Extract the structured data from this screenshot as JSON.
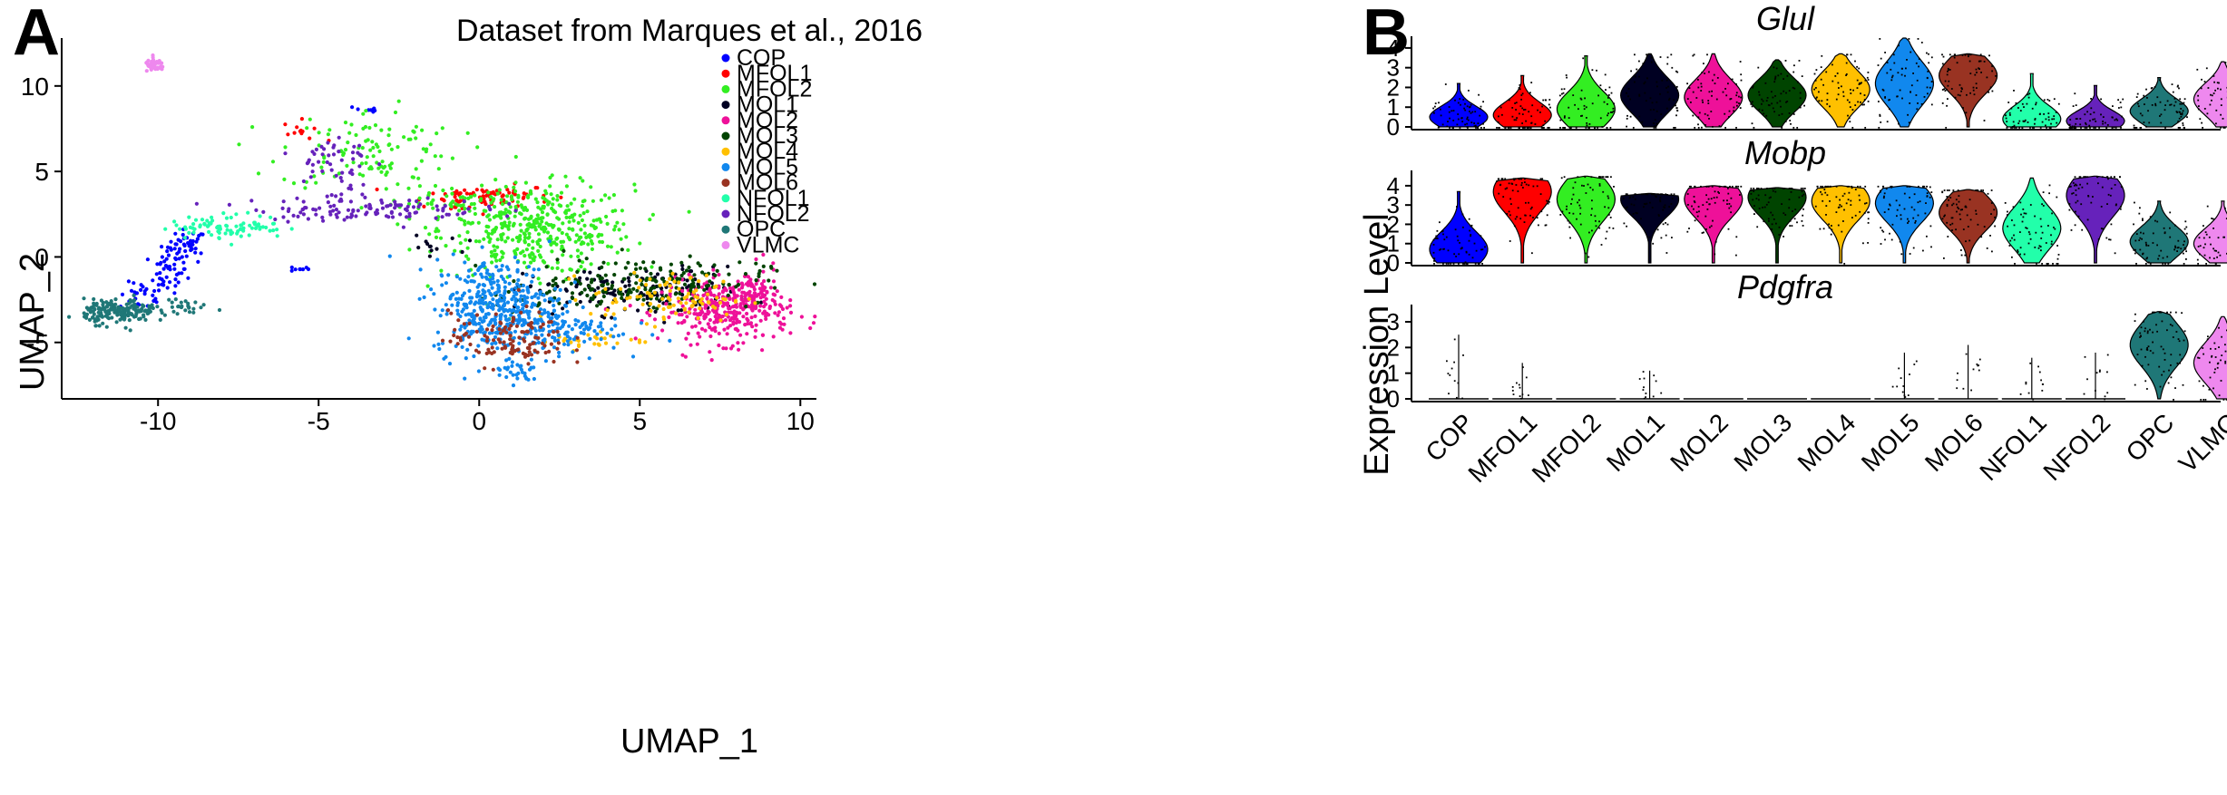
{
  "panel_a_letter": "A",
  "panel_b_letter": "B",
  "chart_data": [
    {
      "type": "scatter",
      "title": "Dataset from Marques et al., 2016",
      "xlabel": "UMAP_1",
      "ylabel": "UMAP_2",
      "xlim": [
        -13,
        10.5
      ],
      "ylim": [
        -8.3,
        12.8
      ],
      "xticks": [
        -10,
        -5,
        0,
        5,
        10
      ],
      "yticks": [
        -5,
        0,
        5,
        10
      ],
      "grid": false,
      "legend_position": "top-right",
      "series": [
        {
          "name": "COP",
          "color": "#0000FF",
          "clusters": [
            {
              "x": -9.1,
              "y": 0.6,
              "sx": 0.3,
              "sy": 0.5,
              "n": 45
            },
            {
              "x": -9.7,
              "y": -0.9,
              "sx": 0.3,
              "sy": 0.6,
              "n": 40
            },
            {
              "x": -10.5,
              "y": -2.3,
              "sx": 0.35,
              "sy": 0.4,
              "n": 25
            },
            {
              "x": -5.6,
              "y": -0.7,
              "sx": 0.15,
              "sy": 0.08,
              "n": 8
            },
            {
              "x": -3.5,
              "y": 8.6,
              "sx": 0.2,
              "sy": 0.15,
              "n": 8
            }
          ]
        },
        {
          "name": "MFOL1",
          "color": "#FF0000",
          "clusters": [
            {
              "x": 0.3,
              "y": 3.6,
              "sx": 1.0,
              "sy": 0.3,
              "n": 70
            },
            {
              "x": -5.5,
              "y": 7.4,
              "sx": 0.3,
              "sy": 0.3,
              "n": 12
            },
            {
              "x": -0.7,
              "y": 3.3,
              "sx": 0.5,
              "sy": 0.5,
              "n": 20
            }
          ]
        },
        {
          "name": "MFOL2",
          "color": "#33EE22",
          "clusters": [
            {
              "x": 1.8,
              "y": 1.6,
              "sx": 1.5,
              "sy": 1.3,
              "n": 420
            },
            {
              "x": -3.4,
              "y": 6.3,
              "sx": 1.4,
              "sy": 1.2,
              "n": 110
            },
            {
              "x": -1.2,
              "y": 3.1,
              "sx": 0.8,
              "sy": 0.6,
              "n": 50
            }
          ]
        },
        {
          "name": "MOL1",
          "color": "#000022",
          "clusters": [
            {
              "x": 4.9,
              "y": -2.0,
              "sx": 1.7,
              "sy": 0.7,
              "n": 160
            },
            {
              "x": -1.6,
              "y": 0.6,
              "sx": 0.5,
              "sy": 0.3,
              "n": 12
            }
          ]
        },
        {
          "name": "MOL2",
          "color": "#EE1199",
          "clusters": [
            {
              "x": 7.7,
              "y": -3.2,
              "sx": 1.0,
              "sy": 0.9,
              "n": 300
            },
            {
              "x": 8.5,
              "y": -2.2,
              "sx": 0.4,
              "sy": 0.8,
              "n": 80
            }
          ]
        },
        {
          "name": "MOL3",
          "color": "#004400",
          "clusters": [
            {
              "x": 5.3,
              "y": -1.4,
              "sx": 1.8,
              "sy": 0.7,
              "n": 160
            },
            {
              "x": 2.5,
              "y": -2.3,
              "sx": 1.0,
              "sy": 0.5,
              "n": 40
            }
          ]
        },
        {
          "name": "MOL4",
          "color": "#FFC000",
          "clusters": [
            {
              "x": 5.9,
              "y": -2.4,
              "sx": 1.2,
              "sy": 0.7,
              "n": 100
            },
            {
              "x": 3.4,
              "y": -4.9,
              "sx": 0.9,
              "sy": 0.25,
              "n": 30
            }
          ]
        },
        {
          "name": "MOL5",
          "color": "#1188EE",
          "clusters": [
            {
              "x": 0.6,
              "y": -2.9,
              "sx": 1.0,
              "sy": 1.4,
              "n": 420
            },
            {
              "x": 2.3,
              "y": -4.3,
              "sx": 1.1,
              "sy": 0.6,
              "n": 110
            },
            {
              "x": 1.2,
              "y": -6.7,
              "sx": 0.4,
              "sy": 0.35,
              "n": 30
            }
          ]
        },
        {
          "name": "MOL6",
          "color": "#993322",
          "clusters": [
            {
              "x": 0.9,
              "y": -4.8,
              "sx": 0.9,
              "sy": 0.8,
              "n": 120
            }
          ]
        },
        {
          "name": "NFOL1",
          "color": "#22FFAA",
          "clusters": [
            {
              "x": -7.8,
              "y": 1.8,
              "sx": 0.9,
              "sy": 0.35,
              "n": 90
            }
          ]
        },
        {
          "name": "NFOL2",
          "color": "#6622BB",
          "clusters": [
            {
              "x": -3.5,
              "y": 2.8,
              "sx": 1.8,
              "sy": 0.35,
              "n": 120
            },
            {
              "x": -4.6,
              "y": 5.5,
              "sx": 0.6,
              "sy": 1.0,
              "n": 50
            }
          ]
        },
        {
          "name": "OPC",
          "color": "#1F7777",
          "clusters": [
            {
              "x": -11.2,
              "y": -3.2,
              "sx": 0.55,
              "sy": 0.35,
              "n": 180
            },
            {
              "x": -9.2,
              "y": -3.0,
              "sx": 0.7,
              "sy": 0.2,
              "n": 30
            }
          ]
        },
        {
          "name": "VLMC",
          "color": "#EE88EE",
          "clusters": [
            {
              "x": -10.1,
              "y": 11.2,
              "sx": 0.15,
              "sy": 0.18,
              "n": 45
            }
          ]
        }
      ]
    },
    {
      "type": "violin",
      "ylabel": "Expression Level",
      "categories": [
        "COP",
        "MFOL1",
        "MFOL2",
        "MOL1",
        "MOL2",
        "MOL3",
        "MOL4",
        "MOL5",
        "MOL6",
        "NFOL1",
        "NFOL2",
        "OPC",
        "VLMC"
      ],
      "colors": [
        "#0000FF",
        "#FF0000",
        "#33EE22",
        "#000022",
        "#EE1199",
        "#004400",
        "#FFC000",
        "#1188EE",
        "#993322",
        "#22FFAA",
        "#6622BB",
        "#1F7777",
        "#EE88EE"
      ],
      "genes": [
        {
          "name": "Glul",
          "ylim": [
            0,
            4.5
          ],
          "yticks": [
            0,
            1,
            2,
            3,
            4
          ],
          "max": [
            2.2,
            2.6,
            3.6,
            3.7,
            3.7,
            3.4,
            3.7,
            4.5,
            3.7,
            2.7,
            2.1,
            2.5,
            3.3
          ],
          "median": [
            0.5,
            0.6,
            0.9,
            1.6,
            1.5,
            1.6,
            1.9,
            2.2,
            2.6,
            0.4,
            0.3,
            0.8,
            1.4
          ]
        },
        {
          "name": "Mobp",
          "ylim": [
            0,
            4.7
          ],
          "yticks": [
            0,
            1,
            2,
            3,
            4
          ],
          "max": [
            3.7,
            4.4,
            4.5,
            3.6,
            4.0,
            3.9,
            4.0,
            4.0,
            3.8,
            4.4,
            4.5,
            3.2,
            3.2
          ],
          "median": [
            0.7,
            3.7,
            3.3,
            3.3,
            3.3,
            3.4,
            3.2,
            3.1,
            2.6,
            1.8,
            3.5,
            1.1,
            1.0
          ]
        },
        {
          "name": "Pdgfra",
          "ylim": [
            0,
            3.6
          ],
          "yticks": [
            0,
            1,
            2,
            3
          ],
          "max": [
            2.5,
            1.4,
            0.2,
            1.1,
            0.1,
            0.1,
            0.1,
            1.8,
            2.1,
            1.6,
            1.8,
            3.4,
            3.2
          ],
          "median": [
            0.05,
            0.05,
            0.05,
            0.05,
            0.05,
            0.05,
            0.05,
            0.05,
            0.05,
            0.05,
            0.05,
            2.1,
            1.4
          ]
        }
      ]
    }
  ]
}
